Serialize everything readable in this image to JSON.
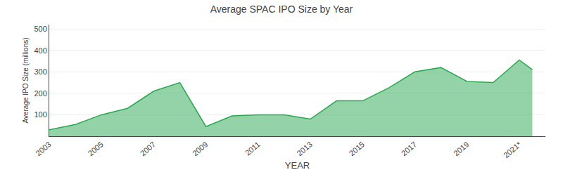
{
  "chart_data": {
    "type": "area",
    "title": "Average SPAC IPO Size by Year",
    "xlabel": "YEAR",
    "ylabel": "Average IPO Size (millions)",
    "x": [
      2003,
      2004,
      2005,
      2006,
      2007,
      2008,
      2009,
      2010,
      2011,
      2012,
      2013,
      2014,
      2015,
      2016,
      2017,
      2018,
      2019,
      2020,
      2021,
      2021.5
    ],
    "values": [
      30,
      55,
      100,
      130,
      210,
      250,
      45,
      95,
      100,
      100,
      80,
      165,
      165,
      225,
      300,
      320,
      255,
      250,
      355,
      310
    ],
    "color": "#2aa84f",
    "xlim": [
      2003,
      2022
    ],
    "xticks": [
      2003,
      2005,
      2007,
      2009,
      2011,
      2013,
      2015,
      2017,
      2019,
      {
        "value": 2021,
        "label": "2021*"
      }
    ],
    "ylim": [
      0,
      520
    ],
    "yticks": [
      100,
      200,
      300,
      400,
      500
    ],
    "grid": "y"
  }
}
